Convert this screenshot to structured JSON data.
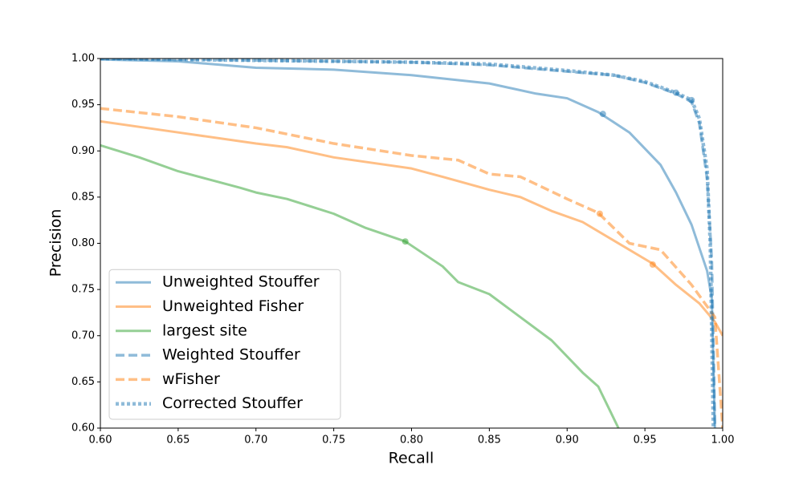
{
  "chart_data": {
    "type": "line",
    "x_label": "Recall",
    "y_label": "Precision",
    "xlim": [
      0.6,
      1.0
    ],
    "ylim": [
      0.6,
      1.0
    ],
    "xticks": [
      {
        "value": 0.6,
        "label": "0.60"
      },
      0.65,
      {
        "value": 0.7,
        "label": "0.70"
      },
      0.75,
      {
        "value": 0.8,
        "label": "0.80"
      },
      0.85,
      {
        "value": 0.9,
        "label": "0.90"
      },
      0.95,
      {
        "value": 1.0,
        "label": "1.00"
      }
    ],
    "yticks": [
      {
        "value": 0.6,
        "label": "0.60"
      },
      0.65,
      {
        "value": 0.7,
        "label": "0.70"
      },
      0.75,
      {
        "value": 0.8,
        "label": "0.80"
      },
      0.85,
      {
        "value": 0.9,
        "label": "0.90"
      },
      0.95,
      {
        "value": 1.0,
        "label": "1.00"
      }
    ],
    "legend": "lower left",
    "alpha": 0.5,
    "series": [
      {
        "name": "Unweighted Stouffer",
        "color": "#1f77b4",
        "style": "solid",
        "x": [
          0.6,
          0.65,
          0.7,
          0.75,
          0.8,
          0.85,
          0.88,
          0.9,
          0.92,
          0.94,
          0.96,
          0.97,
          0.98,
          0.99,
          0.993,
          0.995
        ],
        "values": [
          0.999,
          0.997,
          0.99,
          0.988,
          0.982,
          0.973,
          0.962,
          0.957,
          0.942,
          0.92,
          0.885,
          0.855,
          0.82,
          0.77,
          0.74,
          0.6
        ],
        "marker": {
          "x": 0.923,
          "y": 0.94
        }
      },
      {
        "name": "Unweighted Fisher",
        "color": "#ff7f0e",
        "style": "solid",
        "x": [
          0.6,
          0.65,
          0.7,
          0.72,
          0.75,
          0.8,
          0.82,
          0.85,
          0.87,
          0.89,
          0.91,
          0.93,
          0.955,
          0.97,
          0.985,
          0.995,
          1.0
        ],
        "values": [
          0.932,
          0.92,
          0.908,
          0.904,
          0.893,
          0.881,
          0.872,
          0.858,
          0.85,
          0.835,
          0.823,
          0.803,
          0.778,
          0.755,
          0.735,
          0.715,
          0.7
        ],
        "marker": {
          "x": 0.955,
          "y": 0.777
        }
      },
      {
        "name": "largest site",
        "color": "#2ca02c",
        "style": "solid",
        "x": [
          0.6,
          0.625,
          0.65,
          0.67,
          0.69,
          0.7,
          0.72,
          0.75,
          0.77,
          0.796,
          0.82,
          0.83,
          0.85,
          0.87,
          0.89,
          0.91,
          0.92,
          0.933
        ],
        "values": [
          0.906,
          0.893,
          0.878,
          0.869,
          0.86,
          0.855,
          0.848,
          0.832,
          0.817,
          0.802,
          0.775,
          0.758,
          0.745,
          0.72,
          0.695,
          0.66,
          0.645,
          0.6
        ],
        "marker": {
          "x": 0.796,
          "y": 0.802
        }
      },
      {
        "name": "Weighted Stouffer",
        "color": "#1f77b4",
        "style": "dashed",
        "x": [
          0.6,
          0.7,
          0.8,
          0.85,
          0.9,
          0.93,
          0.95,
          0.97,
          0.98,
          0.985,
          0.99,
          0.993,
          0.995
        ],
        "values": [
          1.0,
          0.998,
          0.996,
          0.993,
          0.986,
          0.982,
          0.974,
          0.962,
          0.953,
          0.93,
          0.87,
          0.78,
          0.6
        ],
        "marker": {
          "x": 0.97,
          "y": 0.963
        }
      },
      {
        "name": "wFisher",
        "color": "#ff7f0e",
        "style": "dashed",
        "x": [
          0.6,
          0.65,
          0.7,
          0.75,
          0.8,
          0.83,
          0.85,
          0.87,
          0.9,
          0.92,
          0.94,
          0.96,
          0.98,
          0.995,
          1.0
        ],
        "values": [
          0.946,
          0.937,
          0.925,
          0.908,
          0.895,
          0.89,
          0.875,
          0.872,
          0.848,
          0.833,
          0.8,
          0.793,
          0.755,
          0.72,
          0.6
        ],
        "marker": {
          "x": 0.921,
          "y": 0.832
        }
      },
      {
        "name": "Corrected Stouffer",
        "color": "#1f77b4",
        "style": "dotted",
        "x": [
          0.6,
          0.7,
          0.8,
          0.85,
          0.9,
          0.93,
          0.95,
          0.97,
          0.98,
          0.985,
          0.99,
          0.992,
          0.994
        ],
        "values": [
          1.0,
          0.998,
          0.996,
          0.994,
          0.987,
          0.982,
          0.975,
          0.963,
          0.955,
          0.935,
          0.88,
          0.8,
          0.6
        ],
        "marker": {
          "x": 0.98,
          "y": 0.955
        }
      }
    ]
  }
}
